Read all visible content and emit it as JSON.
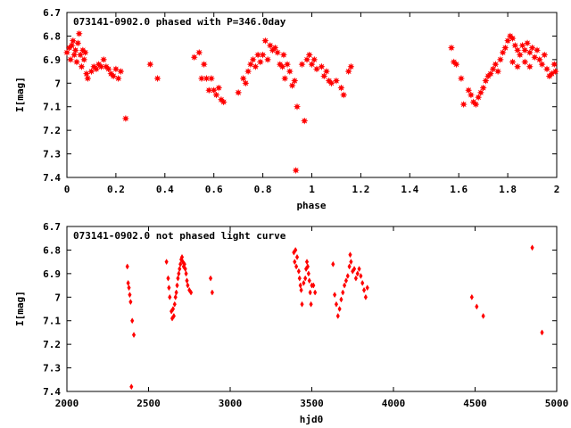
{
  "chart_data": [
    {
      "type": "scatter",
      "title": "073141-0902.0 phased with P=346.0day",
      "xlabel": "phase",
      "ylabel": "I[mag]",
      "xlim": [
        0,
        2
      ],
      "ylim": [
        6.7,
        7.4
      ],
      "y_inverted": true,
      "grid": false,
      "marker": "star",
      "color": "#ff0000",
      "x_ticks": [
        0,
        0.2,
        0.4,
        0.6,
        0.8,
        1,
        1.2,
        1.4,
        1.6,
        1.8,
        2
      ],
      "x_tick_labels": [
        "0",
        "0.2",
        "0.4",
        "0.6",
        "0.8",
        "1",
        "1.2",
        "1.4",
        "1.6",
        "1.8",
        "2"
      ],
      "y_ticks": [
        6.7,
        6.8,
        6.9,
        7,
        7.1,
        7.2,
        7.3,
        7.4
      ],
      "y_tick_labels": [
        "6.7",
        "6.8",
        "6.9",
        "7",
        "7.1",
        "7.2",
        "7.3",
        "7.4"
      ],
      "points": [
        [
          0.0,
          6.87
        ],
        [
          0.01,
          6.85
        ],
        [
          0.015,
          6.9
        ],
        [
          0.02,
          6.84
        ],
        [
          0.025,
          6.82
        ],
        [
          0.03,
          6.88
        ],
        [
          0.035,
          6.86
        ],
        [
          0.04,
          6.91
        ],
        [
          0.045,
          6.83
        ],
        [
          0.05,
          6.79
        ],
        [
          0.055,
          6.88
        ],
        [
          0.06,
          6.93
        ],
        [
          0.065,
          6.86
        ],
        [
          0.07,
          6.9
        ],
        [
          0.075,
          6.87
        ],
        [
          0.08,
          6.96
        ],
        [
          0.085,
          6.98
        ],
        [
          0.1,
          6.95
        ],
        [
          0.11,
          6.93
        ],
        [
          0.12,
          6.94
        ],
        [
          0.13,
          6.92
        ],
        [
          0.14,
          6.93
        ],
        [
          0.15,
          6.9
        ],
        [
          0.16,
          6.93
        ],
        [
          0.17,
          6.94
        ],
        [
          0.18,
          6.96
        ],
        [
          0.19,
          6.97
        ],
        [
          0.2,
          6.94
        ],
        [
          0.21,
          6.98
        ],
        [
          0.22,
          6.95
        ],
        [
          0.24,
          7.15
        ],
        [
          0.34,
          6.92
        ],
        [
          0.37,
          6.98
        ],
        [
          0.52,
          6.89
        ],
        [
          0.54,
          6.87
        ],
        [
          0.55,
          6.98
        ],
        [
          0.56,
          6.92
        ],
        [
          0.57,
          6.98
        ],
        [
          0.58,
          7.03
        ],
        [
          0.59,
          6.98
        ],
        [
          0.6,
          7.03
        ],
        [
          0.61,
          7.05
        ],
        [
          0.62,
          7.02
        ],
        [
          0.63,
          7.07
        ],
        [
          0.64,
          7.08
        ],
        [
          0.7,
          7.04
        ],
        [
          0.72,
          6.98
        ],
        [
          0.73,
          7.0
        ],
        [
          0.74,
          6.95
        ],
        [
          0.75,
          6.92
        ],
        [
          0.76,
          6.9
        ],
        [
          0.77,
          6.93
        ],
        [
          0.78,
          6.88
        ],
        [
          0.79,
          6.91
        ],
        [
          0.8,
          6.88
        ],
        [
          0.81,
          6.82
        ],
        [
          0.82,
          6.9
        ],
        [
          0.83,
          6.84
        ],
        [
          0.84,
          6.86
        ],
        [
          0.85,
          6.85
        ],
        [
          0.86,
          6.87
        ],
        [
          0.87,
          6.92
        ],
        [
          0.88,
          6.93
        ],
        [
          0.885,
          6.88
        ],
        [
          0.89,
          6.98
        ],
        [
          0.9,
          6.92
        ],
        [
          0.91,
          6.95
        ],
        [
          0.92,
          7.01
        ],
        [
          0.93,
          6.99
        ],
        [
          0.935,
          7.37
        ],
        [
          0.94,
          7.1
        ],
        [
          0.97,
          7.16
        ],
        [
          0.96,
          6.92
        ],
        [
          0.98,
          6.9
        ],
        [
          0.99,
          6.88
        ],
        [
          1.0,
          6.92
        ],
        [
          1.01,
          6.9
        ],
        [
          1.02,
          6.94
        ],
        [
          1.04,
          6.93
        ],
        [
          1.05,
          6.97
        ],
        [
          1.06,
          6.95
        ],
        [
          1.07,
          6.99
        ],
        [
          1.08,
          7.0
        ],
        [
          1.1,
          6.99
        ],
        [
          1.12,
          7.02
        ],
        [
          1.13,
          7.05
        ],
        [
          1.15,
          6.95
        ],
        [
          1.16,
          6.93
        ],
        [
          1.57,
          6.85
        ],
        [
          1.58,
          6.91
        ],
        [
          1.59,
          6.92
        ],
        [
          1.61,
          6.98
        ],
        [
          1.62,
          7.09
        ],
        [
          1.64,
          7.03
        ],
        [
          1.65,
          7.05
        ],
        [
          1.66,
          7.08
        ],
        [
          1.67,
          7.09
        ],
        [
          1.68,
          7.06
        ],
        [
          1.69,
          7.04
        ],
        [
          1.7,
          7.02
        ],
        [
          1.71,
          6.99
        ],
        [
          1.72,
          6.97
        ],
        [
          1.73,
          6.96
        ],
        [
          1.74,
          6.94
        ],
        [
          1.75,
          6.92
        ],
        [
          1.76,
          6.95
        ],
        [
          1.77,
          6.9
        ],
        [
          1.78,
          6.87
        ],
        [
          1.79,
          6.85
        ],
        [
          1.8,
          6.82
        ],
        [
          1.81,
          6.8
        ],
        [
          1.82,
          6.81
        ],
        [
          1.83,
          6.84
        ],
        [
          1.84,
          6.86
        ],
        [
          1.85,
          6.88
        ],
        [
          1.86,
          6.84
        ],
        [
          1.87,
          6.86
        ],
        [
          1.88,
          6.83
        ],
        [
          1.89,
          6.87
        ],
        [
          1.9,
          6.85
        ],
        [
          1.91,
          6.89
        ],
        [
          1.92,
          6.86
        ],
        [
          1.93,
          6.9
        ],
        [
          1.94,
          6.92
        ],
        [
          1.95,
          6.88
        ],
        [
          1.96,
          6.94
        ],
        [
          1.97,
          6.97
        ],
        [
          1.98,
          6.96
        ],
        [
          1.99,
          6.92
        ],
        [
          1.995,
          6.95
        ],
        [
          1.82,
          6.91
        ],
        [
          1.84,
          6.93
        ],
        [
          1.87,
          6.91
        ],
        [
          1.89,
          6.93
        ]
      ]
    },
    {
      "type": "scatter",
      "title": "073141-0902.0 not phased light curve",
      "xlabel": "hjd0",
      "ylabel": "I[mag]",
      "xlim": [
        2000,
        5000
      ],
      "ylim": [
        6.7,
        7.4
      ],
      "y_inverted": true,
      "grid": false,
      "marker": "diamond",
      "color": "#ff0000",
      "x_ticks": [
        2000,
        2500,
        3000,
        3500,
        4000,
        4500,
        5000
      ],
      "x_tick_labels": [
        "2000",
        "2500",
        "3000",
        "3500",
        "4000",
        "4500",
        "5000"
      ],
      "y_ticks": [
        6.7,
        6.8,
        6.9,
        7,
        7.1,
        7.2,
        7.3,
        7.4
      ],
      "y_tick_labels": [
        "6.7",
        "6.8",
        "6.9",
        "7",
        "7.1",
        "7.2",
        "7.3",
        "7.4"
      ],
      "points": [
        [
          2370,
          6.87
        ],
        [
          2375,
          6.94
        ],
        [
          2380,
          6.96
        ],
        [
          2385,
          6.99
        ],
        [
          2390,
          7.02
        ],
        [
          2395,
          7.38
        ],
        [
          2400,
          7.1
        ],
        [
          2410,
          7.16
        ],
        [
          2610,
          6.85
        ],
        [
          2620,
          6.92
        ],
        [
          2625,
          6.96
        ],
        [
          2630,
          7.0
        ],
        [
          2640,
          7.06
        ],
        [
          2645,
          7.09
        ],
        [
          2650,
          7.05
        ],
        [
          2655,
          7.08
        ],
        [
          2660,
          7.03
        ],
        [
          2665,
          7.0
        ],
        [
          2670,
          6.98
        ],
        [
          2675,
          6.95
        ],
        [
          2680,
          6.92
        ],
        [
          2685,
          6.9
        ],
        [
          2690,
          6.88
        ],
        [
          2695,
          6.86
        ],
        [
          2700,
          6.84
        ],
        [
          2705,
          6.83
        ],
        [
          2710,
          6.85
        ],
        [
          2715,
          6.87
        ],
        [
          2720,
          6.86
        ],
        [
          2725,
          6.88
        ],
        [
          2730,
          6.9
        ],
        [
          2735,
          6.93
        ],
        [
          2740,
          6.95
        ],
        [
          2750,
          6.97
        ],
        [
          2760,
          6.98
        ],
        [
          2880,
          6.92
        ],
        [
          2890,
          6.98
        ],
        [
          3390,
          6.81
        ],
        [
          3395,
          6.85
        ],
        [
          3400,
          6.8
        ],
        [
          3405,
          6.87
        ],
        [
          3410,
          6.83
        ],
        [
          3420,
          6.89
        ],
        [
          3425,
          6.92
        ],
        [
          3430,
          6.95
        ],
        [
          3435,
          6.97
        ],
        [
          3440,
          7.03
        ],
        [
          3450,
          6.94
        ],
        [
          3460,
          6.92
        ],
        [
          3465,
          6.88
        ],
        [
          3470,
          6.85
        ],
        [
          3475,
          6.87
        ],
        [
          3480,
          6.9
        ],
        [
          3485,
          6.93
        ],
        [
          3490,
          6.98
        ],
        [
          3495,
          7.03
        ],
        [
          3500,
          6.95
        ],
        [
          3510,
          6.95
        ],
        [
          3520,
          6.98
        ],
        [
          3630,
          6.86
        ],
        [
          3640,
          6.99
        ],
        [
          3650,
          7.03
        ],
        [
          3660,
          7.08
        ],
        [
          3670,
          7.05
        ],
        [
          3680,
          7.01
        ],
        [
          3690,
          6.98
        ],
        [
          3700,
          6.95
        ],
        [
          3710,
          6.93
        ],
        [
          3720,
          6.91
        ],
        [
          3730,
          6.87
        ],
        [
          3735,
          6.82
        ],
        [
          3740,
          6.85
        ],
        [
          3750,
          6.89
        ],
        [
          3760,
          6.88
        ],
        [
          3770,
          6.92
        ],
        [
          3780,
          6.9
        ],
        [
          3790,
          6.88
        ],
        [
          3800,
          6.91
        ],
        [
          3810,
          6.94
        ],
        [
          3820,
          6.97
        ],
        [
          3830,
          7.0
        ],
        [
          3840,
          6.96
        ],
        [
          4480,
          7.0
        ],
        [
          4510,
          7.04
        ],
        [
          4550,
          7.08
        ],
        [
          4850,
          6.79
        ],
        [
          4910,
          7.15
        ]
      ]
    }
  ]
}
